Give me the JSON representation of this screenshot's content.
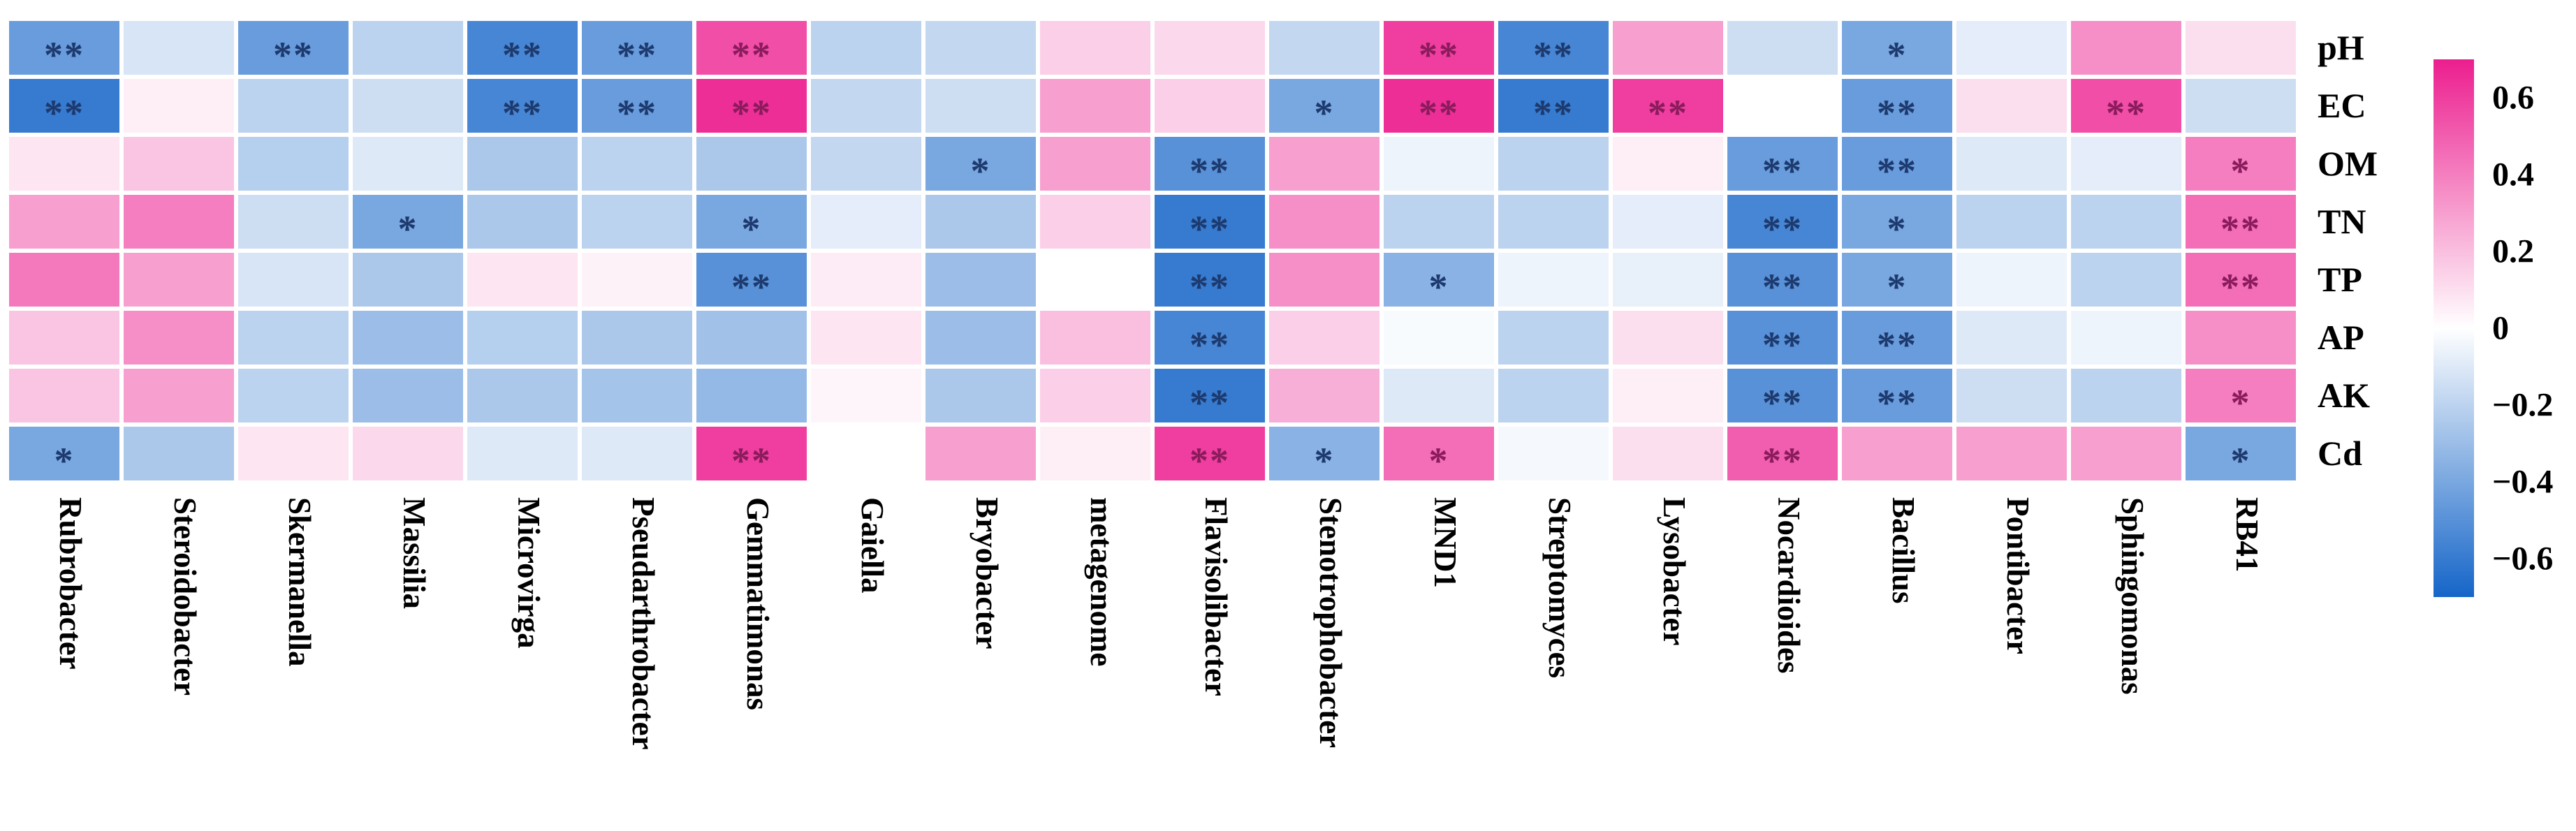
{
  "figure": {
    "kind": "correlation-heatmap",
    "background": "#ffffff"
  },
  "chart_data": {
    "type": "heatmap",
    "title": "",
    "xlabel": "",
    "ylabel": "",
    "x_categories": [
      "Rubrobacter",
      "Steroidobacter",
      "Skermanella",
      "Massilia",
      "Microvirga",
      "Pseudarthrobacter",
      "Gemmatimonas",
      "Gaiella",
      "Bryobacter",
      "metagenome",
      "Flavisolibacter",
      "Stenotrophobacter",
      "MND1",
      "Streptomyces",
      "Lysobacter",
      "Nocardioides",
      "Bacillus",
      "Pontibacter",
      "Sphingomonas",
      "RB41"
    ],
    "y_categories": [
      "pH",
      "EC",
      "OM",
      "TN",
      "TP",
      "AP",
      "AK",
      "Cd"
    ],
    "series": [
      {
        "name": "pH",
        "values": [
          -0.45,
          -0.12,
          -0.45,
          -0.2,
          -0.55,
          -0.45,
          0.55,
          -0.2,
          -0.18,
          0.15,
          0.12,
          -0.18,
          0.6,
          -0.55,
          0.3,
          -0.15,
          -0.4,
          -0.08,
          0.35,
          0.1
        ],
        "sig": [
          "**",
          "",
          "**",
          "",
          "**",
          "**",
          "**",
          "",
          "",
          "",
          "",
          "",
          "**",
          "**",
          "",
          "",
          "*",
          "",
          "",
          ""
        ]
      },
      {
        "name": "EC",
        "values": [
          -0.6,
          0.05,
          -0.2,
          -0.15,
          -0.55,
          -0.45,
          0.65,
          -0.18,
          -0.15,
          0.3,
          0.15,
          -0.4,
          0.65,
          -0.6,
          0.6,
          0.0,
          -0.45,
          0.1,
          0.55,
          -0.15
        ],
        "sig": [
          "**",
          "",
          "",
          "",
          "**",
          "**",
          "**",
          "",
          "",
          "",
          "",
          "*",
          "**",
          "**",
          "**",
          "",
          "**",
          "",
          "**",
          ""
        ]
      },
      {
        "name": "OM",
        "values": [
          0.08,
          0.18,
          -0.22,
          -0.1,
          -0.25,
          -0.2,
          -0.25,
          -0.18,
          -0.4,
          0.3,
          -0.5,
          0.3,
          -0.05,
          -0.2,
          0.05,
          -0.45,
          -0.45,
          -0.1,
          -0.08,
          0.4
        ],
        "sig": [
          "",
          "",
          "",
          "",
          "",
          "",
          "",
          "",
          "*",
          "",
          "**",
          "",
          "",
          "",
          "",
          "**",
          "**",
          "",
          "",
          "*"
        ]
      },
      {
        "name": "TN",
        "values": [
          0.3,
          0.4,
          -0.15,
          -0.4,
          -0.25,
          -0.2,
          -0.4,
          -0.08,
          -0.25,
          0.15,
          -0.6,
          0.35,
          -0.2,
          -0.2,
          -0.08,
          -0.55,
          -0.4,
          -0.2,
          -0.2,
          0.45
        ],
        "sig": [
          "",
          "",
          "",
          "*",
          "",
          "",
          "*",
          "",
          "",
          "",
          "**",
          "",
          "",
          "",
          "",
          "**",
          "*",
          "",
          "",
          "**"
        ]
      },
      {
        "name": "TP",
        "values": [
          0.42,
          0.3,
          -0.12,
          -0.25,
          0.08,
          0.04,
          -0.5,
          0.06,
          -0.3,
          0.0,
          -0.6,
          0.35,
          -0.35,
          -0.05,
          -0.07,
          -0.5,
          -0.4,
          -0.05,
          -0.2,
          0.45
        ],
        "sig": [
          "",
          "",
          "",
          "",
          "",
          "",
          "**",
          "",
          "",
          "",
          "**",
          "",
          "*",
          "",
          "",
          "**",
          "*",
          "",
          "",
          "**"
        ]
      },
      {
        "name": "AP",
        "values": [
          0.18,
          0.35,
          -0.2,
          -0.3,
          -0.22,
          -0.25,
          -0.28,
          0.08,
          -0.3,
          0.2,
          -0.55,
          0.15,
          -0.02,
          -0.2,
          0.1,
          -0.5,
          -0.45,
          -0.1,
          -0.05,
          0.35
        ],
        "sig": [
          "",
          "",
          "",
          "",
          "",
          "",
          "",
          "",
          "",
          "",
          "**",
          "",
          "",
          "",
          "",
          "**",
          "**",
          "",
          "",
          ""
        ]
      },
      {
        "name": "AK",
        "values": [
          0.18,
          0.3,
          -0.2,
          -0.3,
          -0.25,
          -0.27,
          -0.32,
          0.03,
          -0.25,
          0.15,
          -0.6,
          0.25,
          -0.1,
          -0.2,
          0.05,
          -0.5,
          -0.45,
          -0.15,
          -0.2,
          0.4
        ],
        "sig": [
          "",
          "",
          "",
          "",
          "",
          "",
          "",
          "",
          "",
          "",
          "**",
          "",
          "",
          "",
          "",
          "**",
          "**",
          "",
          "",
          "*"
        ]
      },
      {
        "name": "Cd",
        "values": [
          -0.4,
          -0.25,
          0.08,
          0.12,
          -0.1,
          -0.1,
          0.6,
          0.0,
          0.3,
          0.05,
          0.6,
          -0.35,
          0.45,
          -0.03,
          0.1,
          0.5,
          0.3,
          0.3,
          0.3,
          -0.4
        ],
        "sig": [
          "*",
          "",
          "",
          "",
          "",
          "",
          "**",
          "",
          "",
          "",
          "**",
          "*",
          "*",
          "",
          "",
          "**",
          "",
          "",
          "",
          "*"
        ]
      }
    ],
    "value_range": [
      -0.7,
      0.7
    ],
    "grid": false,
    "legend_position": "right",
    "colorbar": {
      "ticks": [
        0.6,
        0.4,
        0.2,
        0,
        -0.2,
        -0.4,
        -0.6
      ],
      "max_color": "#EC1E8F",
      "mid_color": "#FFFFFF",
      "min_color": "#1565C8"
    },
    "star_color_positive": "#8A1B5C",
    "star_color_negative": "#1D3A6E"
  }
}
